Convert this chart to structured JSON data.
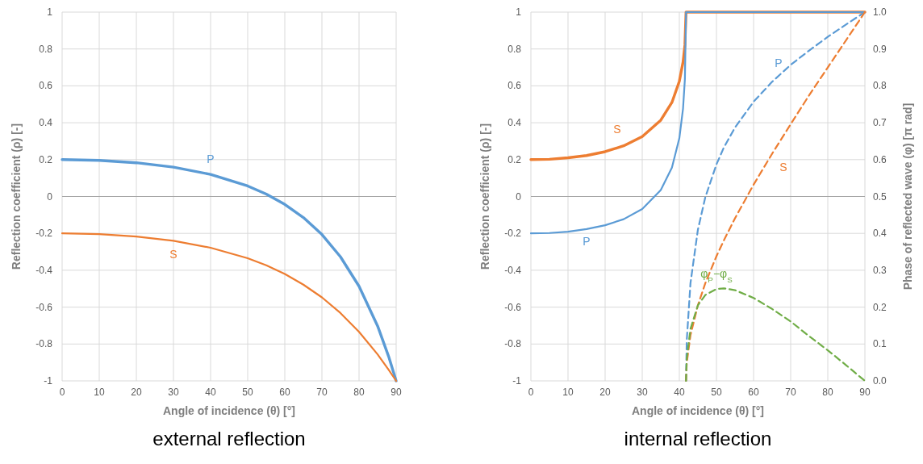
{
  "chart_data": [
    {
      "type": "line",
      "title": "external reflection",
      "xlabel": "Angle of incidence (θ) [°]",
      "ylabel": "Reflection coefficient (ρ) [-]",
      "xlim": [
        0,
        90
      ],
      "xticks": [
        0,
        10,
        20,
        30,
        40,
        50,
        60,
        70,
        80,
        90
      ],
      "ylim": [
        -1,
        1
      ],
      "yticks": [
        -1,
        -0.8,
        -0.6,
        -0.4,
        -0.2,
        0,
        0.2,
        0.4,
        0.6,
        0.8,
        1
      ],
      "grid": true,
      "marker": "none",
      "line_style": "solid",
      "series": [
        {
          "name": "P",
          "color": "#5b9bd5",
          "x": [
            0,
            10,
            20,
            30,
            40,
            50,
            55,
            60,
            65,
            70,
            75,
            80,
            85,
            88,
            90
          ],
          "values": [
            0.2,
            0.196,
            0.183,
            0.159,
            0.12,
            0.057,
            0.013,
            -0.043,
            -0.114,
            -0.206,
            -0.327,
            -0.487,
            -0.702,
            -0.869,
            -1
          ]
        },
        {
          "name": "S",
          "color": "#ed7d31",
          "x": [
            0,
            10,
            20,
            30,
            40,
            50,
            55,
            60,
            65,
            70,
            75,
            80,
            85,
            88,
            90
          ],
          "values": [
            -0.2,
            -0.204,
            -0.217,
            -0.24,
            -0.278,
            -0.335,
            -0.373,
            -0.42,
            -0.478,
            -0.547,
            -0.632,
            -0.734,
            -0.856,
            -0.94,
            -1
          ]
        }
      ]
    },
    {
      "type": "line",
      "title": "internal reflection",
      "xlabel": "Angle of incidence (θ) [°]",
      "ylabel": "Reflection coefficient (ρ) [-]",
      "y2label": "Phase of reflected wave (φ) [π rad]",
      "xlim": [
        0,
        90
      ],
      "xticks": [
        0,
        10,
        20,
        30,
        40,
        50,
        60,
        70,
        80,
        90
      ],
      "ylim": [
        -1,
        1
      ],
      "yticks": [
        -1,
        -0.8,
        -0.6,
        -0.4,
        -0.2,
        0,
        0.2,
        0.4,
        0.6,
        0.8,
        1
      ],
      "y2lim": [
        0,
        1
      ],
      "y2ticks": [
        {
          "value": 0,
          "label": "0.0"
        },
        {
          "value": 0.1,
          "label": "0.1"
        },
        {
          "value": 0.2,
          "label": "0.2"
        },
        {
          "value": 0.3,
          "label": "0.3"
        },
        {
          "value": 0.4,
          "label": "0.4"
        },
        {
          "value": 0.5,
          "label": "0.5"
        },
        {
          "value": 0.6,
          "label": "0.6"
        },
        {
          "value": 0.7,
          "label": "0.7"
        },
        {
          "value": 0.8,
          "label": "0.8"
        },
        {
          "value": 0.9,
          "label": "0.9"
        },
        {
          "value": 1,
          "label": "1.0"
        }
      ],
      "grid": true,
      "marker": "none",
      "line_style": "solid",
      "series": [
        {
          "name": "S",
          "color": "#ed7d31",
          "x": [
            0,
            5,
            10,
            15,
            20,
            25,
            30,
            35,
            38,
            40,
            41,
            41.5,
            41.8,
            90
          ],
          "values": [
            0.2,
            0.202,
            0.21,
            0.222,
            0.243,
            0.275,
            0.325,
            0.414,
            0.51,
            0.625,
            0.729,
            0.821,
            1,
            1
          ]
        },
        {
          "name": "P",
          "color": "#5b9bd5",
          "x": [
            0,
            5,
            10,
            15,
            20,
            25,
            30,
            35,
            38,
            40,
            41,
            41.5,
            41.8,
            90
          ],
          "values": [
            -0.2,
            -0.198,
            -0.191,
            -0.177,
            -0.156,
            -0.123,
            -0.068,
            0.035,
            0.156,
            0.316,
            0.478,
            0.638,
            1,
            1
          ]
        },
        {
          "name": "P",
          "color": "#5b9bd5",
          "axis": "y2",
          "line_style": "dashed",
          "x": [
            41.8,
            42,
            43,
            45,
            47,
            50,
            52,
            55,
            60,
            65,
            70,
            75,
            80,
            85,
            90
          ],
          "values": [
            0,
            0.11,
            0.265,
            0.41,
            0.498,
            0.587,
            0.633,
            0.687,
            0.757,
            0.811,
            0.857,
            0.896,
            0.933,
            0.967,
            1
          ]
        },
        {
          "name": "S",
          "color": "#ed7d31",
          "axis": "y2",
          "line_style": "dashed",
          "x": [
            41.8,
            42,
            43,
            45,
            47,
            50,
            52,
            55,
            60,
            65,
            70,
            75,
            80,
            85,
            90
          ],
          "values": [
            0,
            0.049,
            0.124,
            0.205,
            0.265,
            0.338,
            0.381,
            0.441,
            0.532,
            0.616,
            0.696,
            0.775,
            0.85,
            0.925,
            1
          ]
        },
        {
          "name": "φ$_{P}$−φ$_{S}$",
          "color": "#70ad47",
          "axis": "y2",
          "line_style": "dashed",
          "x": [
            41.8,
            42,
            43,
            45,
            47,
            50,
            52,
            55,
            60,
            65,
            70,
            75,
            80,
            85,
            90
          ],
          "values": [
            0,
            0.061,
            0.141,
            0.205,
            0.233,
            0.249,
            0.251,
            0.246,
            0.225,
            0.195,
            0.161,
            0.121,
            0.083,
            0.042,
            0
          ]
        }
      ]
    }
  ]
}
